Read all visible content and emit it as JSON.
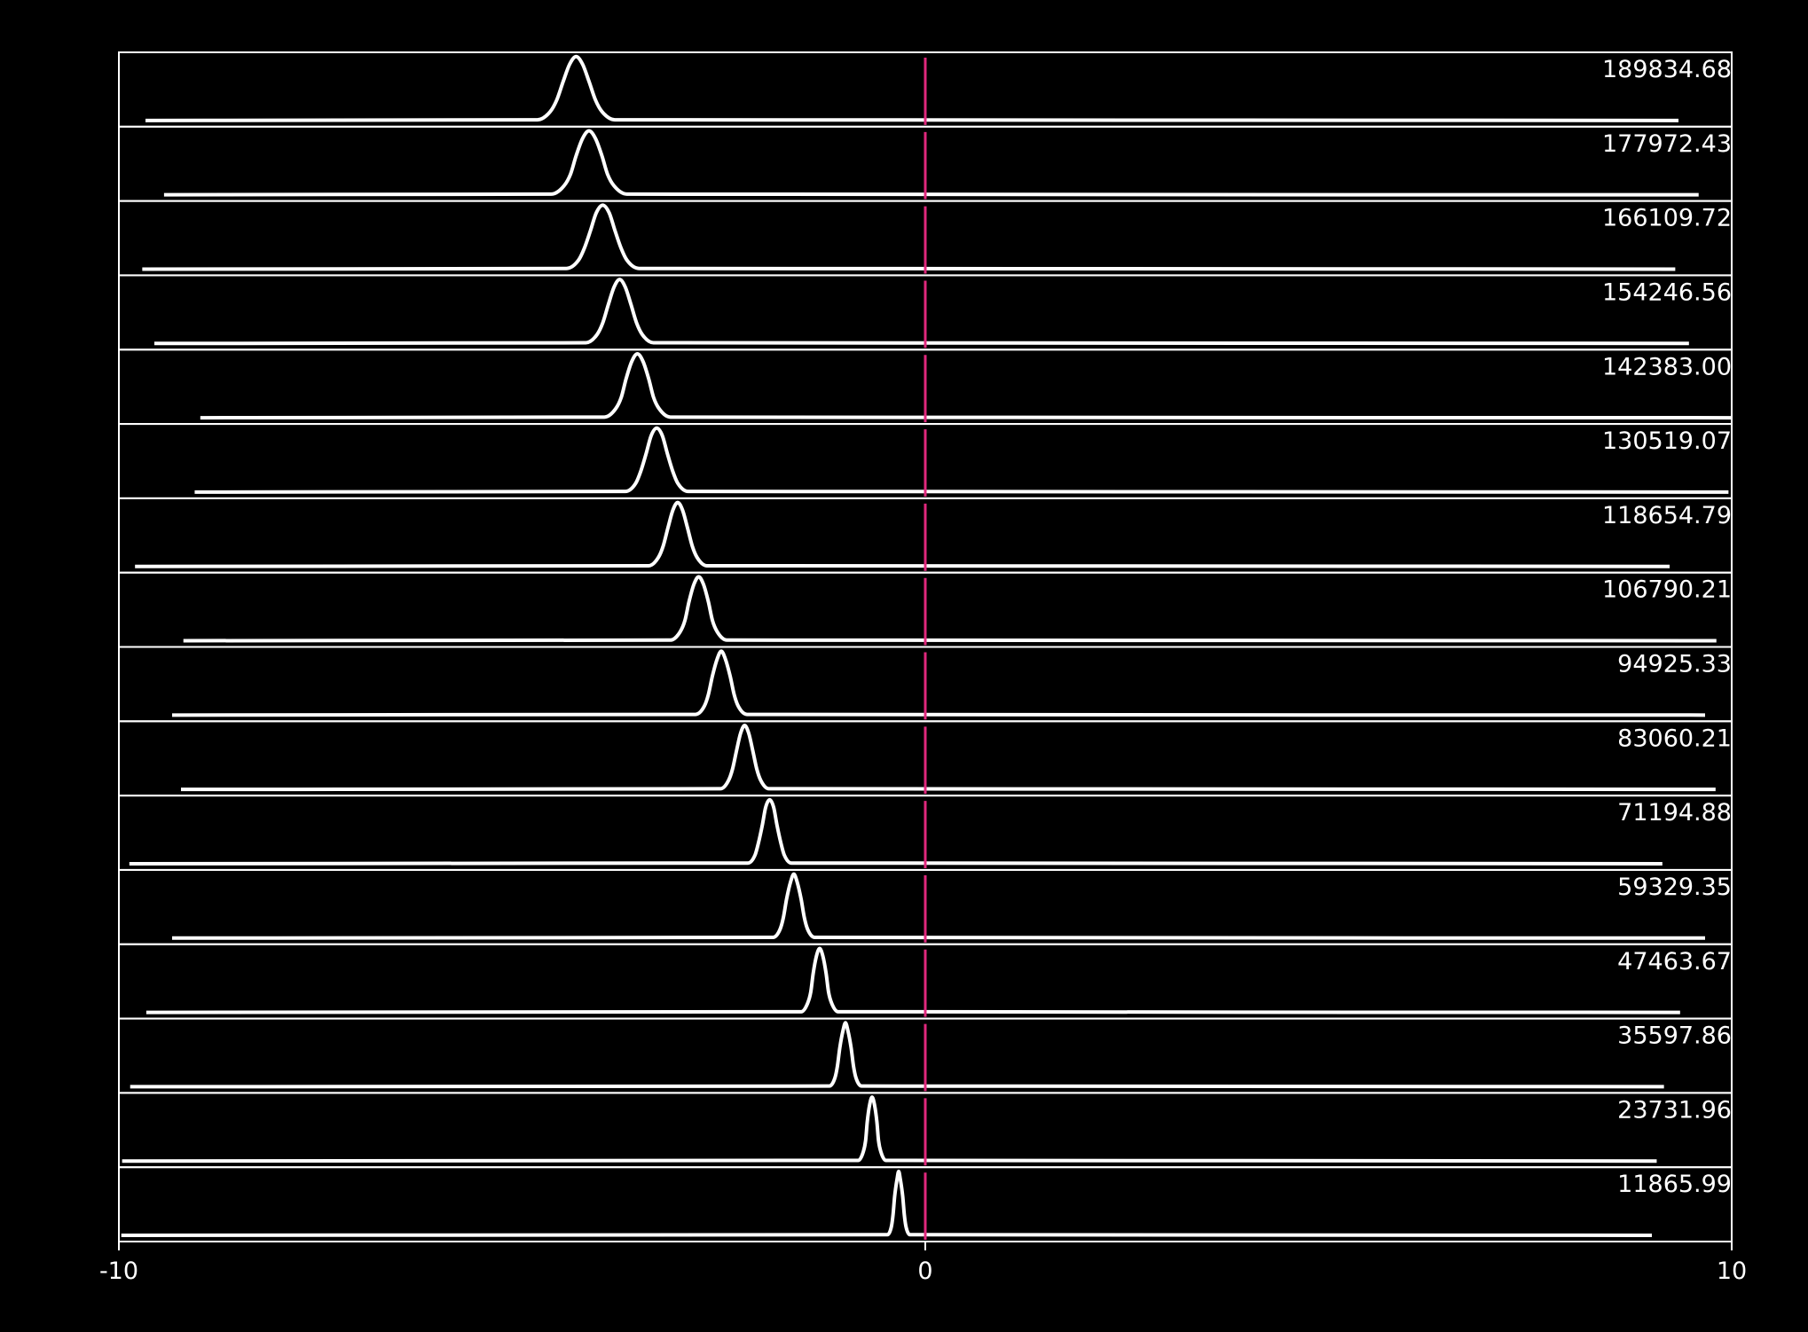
{
  "chart_data": {
    "type": "ridgeline",
    "color": "#ffffff",
    "background": "#000000",
    "xlim": [
      -10,
      10
    ],
    "xticks": [
      -10,
      0,
      10
    ],
    "reference_line": {
      "x": 0,
      "color": "#e0287d"
    },
    "series": [
      {
        "name": "189834.68",
        "x": [
          -9.67,
          -4.81,
          -4.65,
          -4.57,
          -4.49,
          -4.41,
          -4.33,
          -4.25,
          -4.17,
          -4.09,
          -4.01,
          -3.85,
          9.34
        ],
        "values": [
          0,
          0.01,
          0.14,
          0.32,
          0.61,
          0.88,
          1,
          0.88,
          0.61,
          0.32,
          0.14,
          0.01,
          0
        ]
      },
      {
        "name": "177972.43",
        "x": [
          -9.44,
          -4.64,
          -4.48,
          -4.4,
          -4.33,
          -4.25,
          -4.17,
          -4.09,
          -4.01,
          -3.94,
          -3.86,
          -3.7,
          9.59
        ],
        "values": [
          0,
          0.01,
          0.14,
          0.32,
          0.61,
          0.88,
          1,
          0.88,
          0.61,
          0.32,
          0.14,
          0.01,
          0
        ]
      },
      {
        "name": "166109.72",
        "x": [
          -9.71,
          -4.45,
          -4.3,
          -4.23,
          -4.15,
          -4.08,
          -4.0,
          -3.92,
          -3.85,
          -3.77,
          -3.7,
          -3.55,
          9.3
        ],
        "values": [
          0,
          0.01,
          0.14,
          0.32,
          0.61,
          0.88,
          1,
          0.88,
          0.61,
          0.32,
          0.14,
          0.01,
          0
        ]
      },
      {
        "name": "154246.56",
        "x": [
          -9.56,
          -4.21,
          -4.07,
          -4.0,
          -3.93,
          -3.86,
          -3.79,
          -3.72,
          -3.65,
          -3.58,
          -3.51,
          -3.37,
          9.47
        ],
        "values": [
          0,
          0.01,
          0.14,
          0.32,
          0.61,
          0.88,
          1,
          0.88,
          0.61,
          0.32,
          0.14,
          0.01,
          0
        ]
      },
      {
        "name": "142383.00",
        "x": [
          -8.99,
          -3.98,
          -3.84,
          -3.77,
          -3.71,
          -3.64,
          -3.57,
          -3.5,
          -3.43,
          -3.37,
          -3.3,
          -3.16,
          10.0
        ],
        "values": [
          0,
          0.01,
          0.14,
          0.32,
          0.61,
          0.88,
          1,
          0.88,
          0.61,
          0.32,
          0.14,
          0.01,
          0
        ]
      },
      {
        "name": "130519.07",
        "x": [
          -9.06,
          -3.72,
          -3.59,
          -3.53,
          -3.46,
          -3.4,
          -3.33,
          -3.26,
          -3.2,
          -3.13,
          -3.07,
          -2.94,
          9.96
        ],
        "values": [
          0,
          0.01,
          0.14,
          0.32,
          0.61,
          0.88,
          1,
          0.88,
          0.61,
          0.32,
          0.14,
          0.01,
          0
        ]
      },
      {
        "name": "118654.79",
        "x": [
          -9.8,
          -3.43,
          -3.31,
          -3.25,
          -3.19,
          -3.13,
          -3.07,
          -3.01,
          -2.95,
          -2.89,
          -2.83,
          -2.71,
          9.23
        ],
        "values": [
          0,
          0.01,
          0.14,
          0.32,
          0.61,
          0.88,
          1,
          0.88,
          0.61,
          0.32,
          0.14,
          0.01,
          0
        ]
      },
      {
        "name": "106790.21",
        "x": [
          -9.2,
          -3.16,
          -3.04,
          -2.98,
          -2.93,
          -2.87,
          -2.81,
          -2.75,
          -2.69,
          -2.64,
          -2.58,
          -2.46,
          9.81
        ],
        "values": [
          0,
          0.01,
          0.14,
          0.32,
          0.61,
          0.88,
          1,
          0.88,
          0.61,
          0.32,
          0.14,
          0.01,
          0
        ]
      },
      {
        "name": "94925.33",
        "x": [
          -9.34,
          -2.85,
          -2.74,
          -2.69,
          -2.64,
          -2.58,
          -2.53,
          -2.48,
          -2.42,
          -2.37,
          -2.32,
          -2.21,
          9.67
        ],
        "values": [
          0,
          0.01,
          0.14,
          0.32,
          0.61,
          0.88,
          1,
          0.88,
          0.61,
          0.32,
          0.14,
          0.01,
          0
        ]
      },
      {
        "name": "83060.21",
        "x": [
          -9.23,
          -2.54,
          -2.44,
          -2.39,
          -2.34,
          -2.29,
          -2.24,
          -2.19,
          -2.14,
          -2.09,
          -2.04,
          -1.94,
          9.8
        ],
        "values": [
          0,
          0.01,
          0.14,
          0.32,
          0.61,
          0.88,
          1,
          0.88,
          0.61,
          0.32,
          0.14,
          0.01,
          0
        ]
      },
      {
        "name": "71194.88",
        "x": [
          -9.87,
          -2.2,
          -2.11,
          -2.07,
          -2.02,
          -1.98,
          -1.93,
          -1.88,
          -1.84,
          -1.79,
          -1.75,
          -1.66,
          9.14
        ],
        "values": [
          0,
          0.01,
          0.14,
          0.32,
          0.61,
          0.88,
          1,
          0.88,
          0.61,
          0.32,
          0.14,
          0.01,
          0
        ]
      },
      {
        "name": "59329.35",
        "x": [
          -9.34,
          -1.89,
          -1.8,
          -1.76,
          -1.72,
          -1.67,
          -1.63,
          -1.59,
          -1.54,
          -1.5,
          -1.46,
          -1.37,
          9.67
        ],
        "values": [
          0,
          0.01,
          0.14,
          0.32,
          0.61,
          0.88,
          1,
          0.88,
          0.61,
          0.32,
          0.14,
          0.01,
          0
        ]
      },
      {
        "name": "47463.67",
        "x": [
          -9.66,
          -1.54,
          -1.46,
          -1.42,
          -1.39,
          -1.35,
          -1.31,
          -1.27,
          -1.23,
          -1.2,
          -1.16,
          -1.08,
          9.36
        ],
        "values": [
          0,
          0.01,
          0.14,
          0.32,
          0.61,
          0.88,
          1,
          0.88,
          0.61,
          0.32,
          0.14,
          0.01,
          0
        ]
      },
      {
        "name": "35597.86",
        "x": [
          -9.86,
          -1.19,
          -1.12,
          -1.09,
          -1.06,
          -1.02,
          -0.99,
          -0.96,
          -0.92,
          -0.89,
          -0.86,
          -0.79,
          9.16
        ],
        "values": [
          0,
          0.01,
          0.14,
          0.32,
          0.61,
          0.88,
          1,
          0.88,
          0.61,
          0.32,
          0.14,
          0.01,
          0
        ]
      },
      {
        "name": "23731.96",
        "x": [
          -9.96,
          -0.83,
          -0.77,
          -0.74,
          -0.72,
          -0.69,
          -0.66,
          -0.63,
          -0.6,
          -0.58,
          -0.55,
          -0.49,
          9.07
        ],
        "values": [
          0,
          0.01,
          0.14,
          0.32,
          0.61,
          0.88,
          1,
          0.88,
          0.61,
          0.32,
          0.14,
          0.01,
          0
        ]
      },
      {
        "name": "11865.99",
        "x": [
          -9.97,
          -0.47,
          -0.42,
          -0.4,
          -0.38,
          -0.35,
          -0.33,
          -0.31,
          -0.28,
          -0.26,
          -0.24,
          -0.19,
          9.01
        ],
        "values": [
          0,
          0.01,
          0.14,
          0.32,
          0.61,
          0.88,
          1,
          0.88,
          0.61,
          0.32,
          0.14,
          0.01,
          0
        ]
      }
    ]
  }
}
